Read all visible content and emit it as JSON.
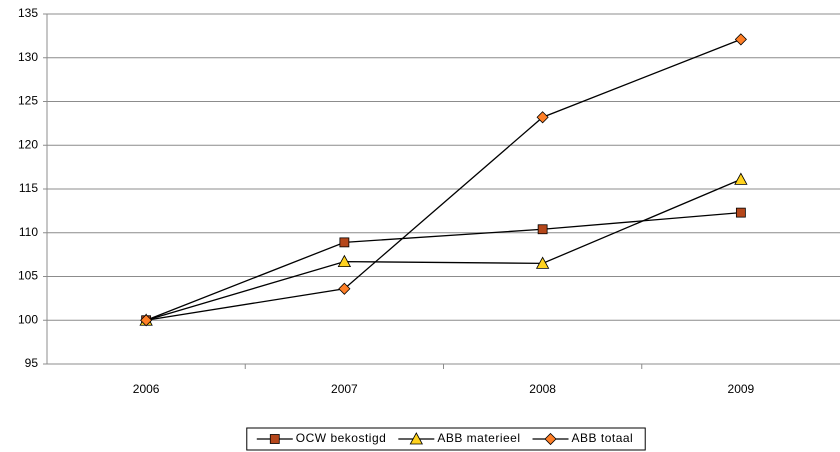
{
  "chart_data": {
    "type": "line",
    "categories": [
      "2006",
      "2007",
      "2008",
      "2009"
    ],
    "series": [
      {
        "name": "OCW bekostigd",
        "color": "#b5471b",
        "marker": "square",
        "values": [
          100,
          108.9,
          110.4,
          112.3
        ]
      },
      {
        "name": "ABB materieel",
        "color": "#ffd21e",
        "marker": "triangle",
        "values": [
          100,
          106.7,
          106.5,
          116.1
        ]
      },
      {
        "name": "ABB totaal",
        "color": "#ff7f27",
        "marker": "diamond",
        "values": [
          100,
          103.6,
          123.2,
          132.1
        ]
      }
    ],
    "ylim": [
      95,
      135
    ],
    "yticks": [
      95,
      100,
      105,
      110,
      115,
      120,
      125,
      130,
      135
    ],
    "grid": true
  }
}
